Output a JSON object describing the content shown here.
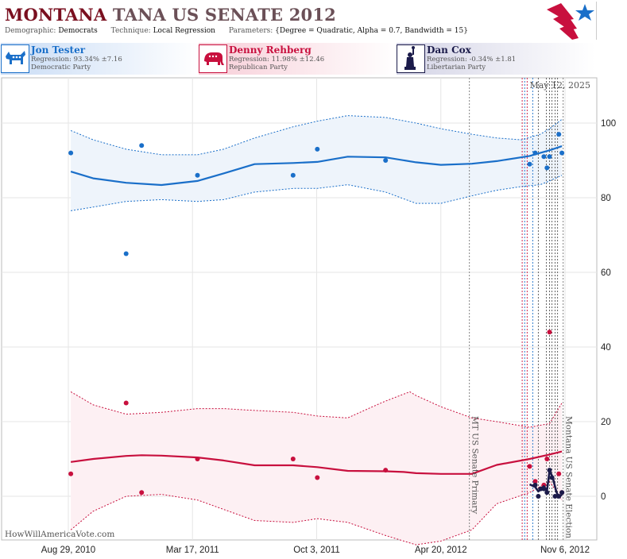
{
  "header": {
    "title_state": "MONTANA",
    "title_rest": "TANA US SENATE 2012",
    "demographic_label": "Demographic:",
    "demographic_value": "Democrats",
    "technique_label": "Technique:",
    "technique_value": "Local Regression",
    "parameters_label": "Parameters:",
    "parameters_value": "{Degree = Quadratic, Alpha = 0.7, Bandwidth = 15}"
  },
  "candidates": [
    {
      "name": "Jon Tester",
      "regression": "Regression: 93.34% ±7.16",
      "party": "Democratic Party",
      "color": "#1a6fc9",
      "icon": "donkey-icon"
    },
    {
      "name": "Denny Rehberg",
      "regression": "Regression: 11.98% ±12.46",
      "party": "Republican Party",
      "color": "#c8103e",
      "icon": "elephant-icon"
    },
    {
      "name": "Dan Cox",
      "regression": "Regression: -0.34% ±1.81",
      "party": "Libertarian Party",
      "color": "#1b1b4a",
      "icon": "statue-of-liberty-icon"
    }
  ],
  "chart_data": {
    "type": "scatter",
    "current_date_label": "May 12, 2025",
    "watermark": "HowWillAmericaVote.com",
    "x_tick_labels": [
      "Aug 29, 2010",
      "Mar 17, 2011",
      "Oct 3, 2011",
      "Apr 20, 2012",
      "Nov 6, 2012"
    ],
    "x_ticks_days": [
      0,
      200,
      400,
      600,
      800
    ],
    "y_ticks": [
      0,
      20,
      40,
      60,
      80,
      100
    ],
    "xlim_days": [
      -30,
      836
    ],
    "ylim": [
      -13,
      112
    ],
    "grid": true,
    "events": [
      {
        "label": "MT US Senate Primary",
        "day": 646
      },
      {
        "label": "Montana US Senate Election",
        "day": 797
      }
    ],
    "poll_lines": [
      {
        "day": 731,
        "color": "#c8103e"
      },
      {
        "day": 735,
        "color": "#1a6fc9"
      },
      {
        "day": 739,
        "color": "#c8103e"
      },
      {
        "day": 748,
        "color": "#1a6fc9"
      },
      {
        "day": 757,
        "color": "#555555"
      },
      {
        "day": 770,
        "color": "#555555"
      },
      {
        "day": 775,
        "color": "#555555"
      },
      {
        "day": 779,
        "color": "#555555"
      },
      {
        "day": 784,
        "color": "#555555"
      },
      {
        "day": 788,
        "color": "#555555"
      }
    ],
    "series": [
      {
        "name": "Jon Tester",
        "color": "#1a6fc9",
        "band_fill": "#eef4fb",
        "points": [
          [
            4,
            92
          ],
          [
            93,
            65
          ],
          [
            118,
            94
          ],
          [
            208,
            86
          ],
          [
            362,
            86
          ],
          [
            401,
            93
          ],
          [
            511,
            90
          ],
          [
            743,
            89
          ],
          [
            752,
            92
          ],
          [
            766,
            91
          ],
          [
            771,
            88
          ],
          [
            775,
            91
          ],
          [
            790,
            97
          ],
          [
            795,
            92
          ]
        ],
        "trend": [
          [
            4,
            87
          ],
          [
            40,
            85.2
          ],
          [
            93,
            84
          ],
          [
            150,
            83.4
          ],
          [
            208,
            84.5
          ],
          [
            250,
            86.5
          ],
          [
            300,
            89
          ],
          [
            362,
            89.3
          ],
          [
            401,
            89.6
          ],
          [
            450,
            91
          ],
          [
            511,
            90.8
          ],
          [
            560,
            89.5
          ],
          [
            600,
            88.8
          ],
          [
            650,
            89.1
          ],
          [
            690,
            89.8
          ],
          [
            743,
            91.2
          ],
          [
            760,
            92
          ],
          [
            775,
            92.7
          ],
          [
            795,
            93.8
          ]
        ],
        "upper": [
          [
            4,
            98
          ],
          [
            40,
            95.5
          ],
          [
            93,
            93
          ],
          [
            150,
            91.5
          ],
          [
            208,
            91.5
          ],
          [
            250,
            93
          ],
          [
            300,
            96
          ],
          [
            362,
            99
          ],
          [
            401,
            100.5
          ],
          [
            450,
            102
          ],
          [
            511,
            101.5
          ],
          [
            560,
            100
          ],
          [
            600,
            98.5
          ],
          [
            650,
            97
          ],
          [
            690,
            96
          ],
          [
            730,
            95.5
          ],
          [
            760,
            97
          ],
          [
            775,
            98.5
          ],
          [
            795,
            101
          ]
        ],
        "lower": [
          [
            4,
            76.5
          ],
          [
            40,
            77.5
          ],
          [
            93,
            79
          ],
          [
            150,
            79.5
          ],
          [
            208,
            79
          ],
          [
            250,
            79.5
          ],
          [
            300,
            81.5
          ],
          [
            362,
            82.5
          ],
          [
            401,
            82.5
          ],
          [
            450,
            83.5
          ],
          [
            511,
            81.5
          ],
          [
            560,
            78.5
          ],
          [
            600,
            78.5
          ],
          [
            650,
            80.5
          ],
          [
            690,
            82
          ],
          [
            730,
            83
          ],
          [
            760,
            83.5
          ],
          [
            775,
            84.5
          ],
          [
            795,
            86
          ]
        ]
      },
      {
        "name": "Denny Rehberg",
        "color": "#c8103e",
        "band_fill": "#fdf0f3",
        "points": [
          [
            4,
            6
          ],
          [
            93,
            25
          ],
          [
            118,
            1
          ],
          [
            208,
            10
          ],
          [
            362,
            10
          ],
          [
            401,
            5
          ],
          [
            511,
            7
          ],
          [
            743,
            8
          ],
          [
            752,
            4
          ],
          [
            766,
            3
          ],
          [
            771,
            10
          ],
          [
            775,
            44
          ],
          [
            790,
            6
          ],
          [
            795,
            1
          ]
        ],
        "trend": [
          [
            4,
            9.2
          ],
          [
            40,
            10
          ],
          [
            93,
            10.8
          ],
          [
            118,
            11
          ],
          [
            150,
            10.9
          ],
          [
            208,
            10.4
          ],
          [
            250,
            9.6
          ],
          [
            300,
            8.3
          ],
          [
            362,
            8.3
          ],
          [
            401,
            7.8
          ],
          [
            450,
            6.8
          ],
          [
            511,
            6.7
          ],
          [
            540,
            6.5
          ],
          [
            560,
            6.2
          ],
          [
            600,
            6
          ],
          [
            650,
            6
          ],
          [
            690,
            8.4
          ],
          [
            743,
            10
          ],
          [
            775,
            11.2
          ],
          [
            795,
            12
          ]
        ],
        "upper": [
          [
            4,
            28
          ],
          [
            40,
            24.5
          ],
          [
            93,
            22
          ],
          [
            150,
            22.5
          ],
          [
            208,
            23.5
          ],
          [
            250,
            23.5
          ],
          [
            300,
            23
          ],
          [
            362,
            22.5
          ],
          [
            401,
            21.5
          ],
          [
            450,
            21
          ],
          [
            490,
            24
          ],
          [
            511,
            25.5
          ],
          [
            550,
            28
          ],
          [
            560,
            27
          ],
          [
            600,
            24
          ],
          [
            650,
            21
          ],
          [
            690,
            20
          ],
          [
            743,
            18.5
          ],
          [
            775,
            19.5
          ],
          [
            795,
            25
          ]
        ],
        "lower": [
          [
            4,
            -9
          ],
          [
            40,
            -4
          ],
          [
            93,
            0
          ],
          [
            150,
            0.5
          ],
          [
            208,
            -1
          ],
          [
            250,
            -3.5
          ],
          [
            300,
            -6.5
          ],
          [
            362,
            -7
          ],
          [
            401,
            -6
          ],
          [
            450,
            -7
          ],
          [
            511,
            -10.5
          ],
          [
            560,
            -13
          ],
          [
            600,
            -12
          ],
          [
            650,
            -9
          ],
          [
            690,
            -2
          ],
          [
            743,
            1
          ],
          [
            775,
            4
          ],
          [
            795,
            -1
          ]
        ]
      },
      {
        "name": "Dan Cox",
        "color": "#1b1b4a",
        "points": [
          [
            752,
            3
          ],
          [
            757,
            0
          ],
          [
            761,
            2
          ],
          [
            766,
            2
          ],
          [
            771,
            1
          ],
          [
            775,
            7
          ],
          [
            779,
            5
          ],
          [
            784,
            0
          ],
          [
            790,
            0
          ],
          [
            795,
            1
          ]
        ],
        "trend": [
          [
            743,
            3.2
          ],
          [
            752,
            2.5
          ],
          [
            757,
            1.3
          ],
          [
            761,
            1.8
          ],
          [
            766,
            2.7
          ],
          [
            771,
            1.5
          ],
          [
            775,
            6.8
          ],
          [
            780,
            5.2
          ],
          [
            786,
            1.2
          ],
          [
            790,
            -0.2
          ],
          [
            795,
            0.4
          ]
        ]
      }
    ]
  }
}
